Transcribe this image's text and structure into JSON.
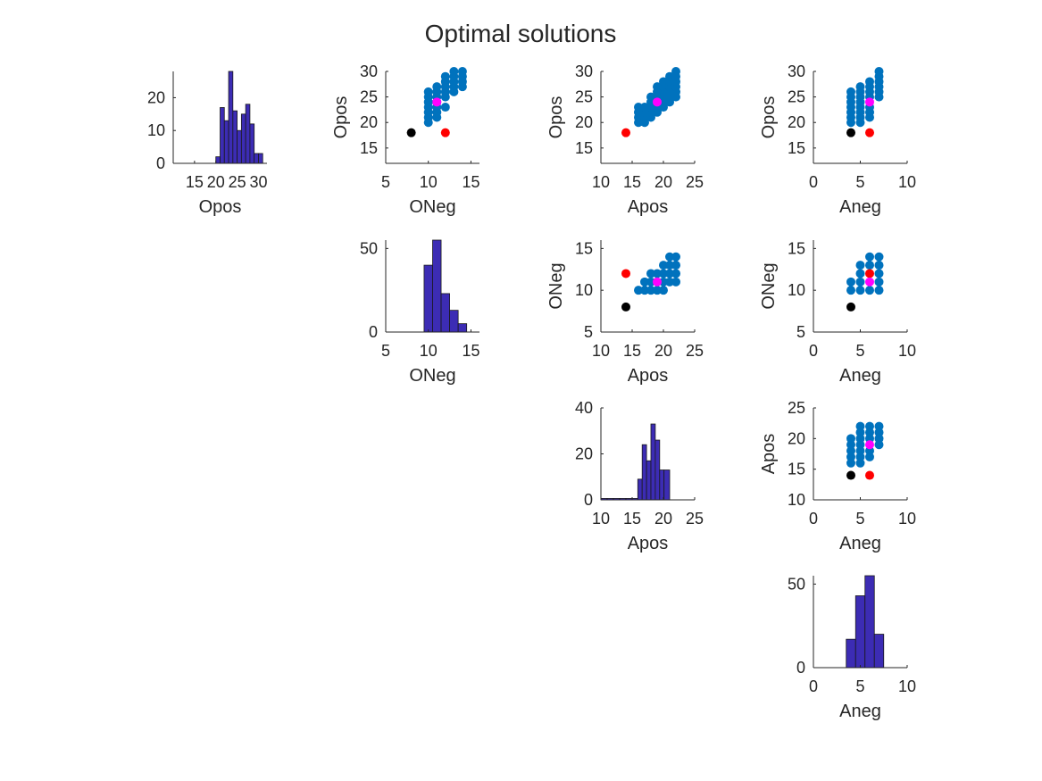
{
  "figure": {
    "title": "Optimal solutions"
  },
  "colors": {
    "hist_bar": "#3c2cb4",
    "scatter_points": "#0072bd",
    "point_magenta": "#ff00ff",
    "point_red": "#ff0000",
    "point_black": "#000000"
  },
  "chart_data": [
    {
      "id": "hist-opos",
      "type": "bar",
      "row": 0,
      "col": 0,
      "xlabel": "Opos",
      "xlim": [
        10,
        32
      ],
      "ylim": [
        0,
        28
      ],
      "xticks": [
        15,
        20,
        25,
        30
      ],
      "yticks": [
        0,
        10,
        20
      ],
      "bin_edges": [
        11,
        12,
        13,
        14,
        15,
        16,
        17,
        18,
        19,
        20,
        21,
        22,
        23,
        24,
        25,
        26,
        27,
        28,
        29,
        30,
        31
      ],
      "values": [
        0,
        0,
        0,
        0,
        0,
        0,
        0,
        0,
        0,
        2,
        17,
        13,
        28,
        16,
        10,
        15,
        18,
        12,
        3,
        3
      ]
    },
    {
      "id": "scatter-oneg-opos",
      "type": "scatter",
      "row": 0,
      "col": 1,
      "xlabel": "ONeg",
      "ylabel": "Opos",
      "xlim": [
        5,
        16
      ],
      "ylim": [
        12,
        30
      ],
      "xticks": [
        5,
        10,
        15
      ],
      "yticks": [
        15,
        20,
        25,
        30
      ],
      "points": [
        [
          10,
          20
        ],
        [
          10,
          21
        ],
        [
          10,
          22
        ],
        [
          10,
          23
        ],
        [
          10,
          24
        ],
        [
          10,
          25
        ],
        [
          10,
          26
        ],
        [
          11,
          21
        ],
        [
          11,
          22
        ],
        [
          11,
          23
        ],
        [
          11,
          24
        ],
        [
          11,
          25
        ],
        [
          11,
          26
        ],
        [
          11,
          27
        ],
        [
          12,
          23
        ],
        [
          12,
          25
        ],
        [
          12,
          26
        ],
        [
          12,
          27
        ],
        [
          12,
          28
        ],
        [
          12,
          29
        ],
        [
          13,
          26
        ],
        [
          13,
          27
        ],
        [
          13,
          28
        ],
        [
          13,
          29
        ],
        [
          13,
          30
        ],
        [
          14,
          27
        ],
        [
          14,
          28
        ],
        [
          14,
          29
        ],
        [
          14,
          30
        ]
      ],
      "special": [
        {
          "x": 11,
          "y": 24,
          "color": "point_magenta"
        },
        {
          "x": 12,
          "y": 18,
          "color": "point_red"
        },
        {
          "x": 8,
          "y": 18,
          "color": "point_black"
        }
      ]
    },
    {
      "id": "scatter-apos-opos",
      "type": "scatter",
      "row": 0,
      "col": 2,
      "xlabel": "Apos",
      "ylabel": "Opos",
      "xlim": [
        10,
        25
      ],
      "ylim": [
        12,
        30
      ],
      "xticks": [
        10,
        15,
        20,
        25
      ],
      "yticks": [
        15,
        20,
        25,
        30
      ],
      "points": [
        [
          16,
          20
        ],
        [
          16,
          21
        ],
        [
          16,
          22
        ],
        [
          16,
          23
        ],
        [
          17,
          20
        ],
        [
          17,
          21
        ],
        [
          17,
          22
        ],
        [
          17,
          23
        ],
        [
          18,
          21
        ],
        [
          18,
          22
        ],
        [
          18,
          23
        ],
        [
          18,
          24
        ],
        [
          18,
          25
        ],
        [
          19,
          22
        ],
        [
          19,
          23
        ],
        [
          19,
          24
        ],
        [
          19,
          25
        ],
        [
          19,
          26
        ],
        [
          19,
          27
        ],
        [
          20,
          23
        ],
        [
          20,
          24
        ],
        [
          20,
          25
        ],
        [
          20,
          26
        ],
        [
          20,
          27
        ],
        [
          20,
          28
        ],
        [
          21,
          24
        ],
        [
          21,
          25
        ],
        [
          21,
          26
        ],
        [
          21,
          27
        ],
        [
          21,
          28
        ],
        [
          21,
          29
        ],
        [
          22,
          25
        ],
        [
          22,
          26
        ],
        [
          22,
          27
        ],
        [
          22,
          28
        ],
        [
          22,
          29
        ],
        [
          22,
          30
        ]
      ],
      "special": [
        {
          "x": 19,
          "y": 24,
          "color": "point_magenta"
        },
        {
          "x": 14,
          "y": 18,
          "color": "point_red"
        }
      ]
    },
    {
      "id": "scatter-aneg-opos",
      "type": "scatter",
      "row": 0,
      "col": 3,
      "xlabel": "Aneg",
      "ylabel": "Opos",
      "xlim": [
        0,
        10
      ],
      "ylim": [
        12,
        30
      ],
      "xticks": [
        0,
        5,
        10
      ],
      "yticks": [
        15,
        20,
        25,
        30
      ],
      "points": [
        [
          4,
          20
        ],
        [
          4,
          21
        ],
        [
          4,
          22
        ],
        [
          4,
          23
        ],
        [
          4,
          24
        ],
        [
          4,
          25
        ],
        [
          4,
          26
        ],
        [
          5,
          20
        ],
        [
          5,
          21
        ],
        [
          5,
          22
        ],
        [
          5,
          23
        ],
        [
          5,
          24
        ],
        [
          5,
          25
        ],
        [
          5,
          26
        ],
        [
          5,
          27
        ],
        [
          6,
          21
        ],
        [
          6,
          22
        ],
        [
          6,
          23
        ],
        [
          6,
          25
        ],
        [
          6,
          26
        ],
        [
          6,
          27
        ],
        [
          6,
          28
        ],
        [
          7,
          25
        ],
        [
          7,
          26
        ],
        [
          7,
          27
        ],
        [
          7,
          28
        ],
        [
          7,
          29
        ],
        [
          7,
          30
        ]
      ],
      "special": [
        {
          "x": 6,
          "y": 24,
          "color": "point_magenta"
        },
        {
          "x": 6,
          "y": 18,
          "color": "point_red"
        },
        {
          "x": 4,
          "y": 18,
          "color": "point_black"
        }
      ]
    },
    {
      "id": "hist-oneg",
      "type": "bar",
      "row": 1,
      "col": 1,
      "xlabel": "ONeg",
      "xlim": [
        5,
        16
      ],
      "ylim": [
        0,
        55
      ],
      "xticks": [
        5,
        10,
        15
      ],
      "yticks": [
        0,
        50
      ],
      "bin_edges": [
        5.5,
        6.5,
        7.5,
        8.5,
        9.5,
        10.5,
        11.5,
        12.5,
        13.5,
        14.5
      ],
      "values": [
        0,
        0,
        0,
        0,
        40,
        55,
        23,
        13,
        5
      ]
    },
    {
      "id": "scatter-apos-oneg",
      "type": "scatter",
      "row": 1,
      "col": 2,
      "xlabel": "Apos",
      "ylabel": "ONeg",
      "xlim": [
        10,
        25
      ],
      "ylim": [
        5,
        16
      ],
      "xticks": [
        10,
        15,
        20,
        25
      ],
      "yticks": [
        5,
        10,
        15
      ],
      "points": [
        [
          16,
          10
        ],
        [
          17,
          10
        ],
        [
          17,
          11
        ],
        [
          18,
          10
        ],
        [
          18,
          11
        ],
        [
          18,
          12
        ],
        [
          19,
          10
        ],
        [
          19,
          11
        ],
        [
          19,
          12
        ],
        [
          20,
          10
        ],
        [
          20,
          11
        ],
        [
          20,
          12
        ],
        [
          20,
          13
        ],
        [
          21,
          11
        ],
        [
          21,
          12
        ],
        [
          21,
          13
        ],
        [
          21,
          14
        ],
        [
          22,
          11
        ],
        [
          22,
          12
        ],
        [
          22,
          13
        ],
        [
          22,
          14
        ]
      ],
      "special": [
        {
          "x": 19,
          "y": 11,
          "color": "point_magenta"
        },
        {
          "x": 14,
          "y": 12,
          "color": "point_red"
        },
        {
          "x": 14,
          "y": 8,
          "color": "point_black"
        }
      ]
    },
    {
      "id": "scatter-aneg-oneg",
      "type": "scatter",
      "row": 1,
      "col": 3,
      "xlabel": "Aneg",
      "ylabel": "ONeg",
      "xlim": [
        0,
        10
      ],
      "ylim": [
        5,
        16
      ],
      "xticks": [
        0,
        5,
        10
      ],
      "yticks": [
        5,
        10,
        15
      ],
      "points": [
        [
          4,
          10
        ],
        [
          4,
          11
        ],
        [
          5,
          10
        ],
        [
          5,
          11
        ],
        [
          5,
          12
        ],
        [
          5,
          13
        ],
        [
          6,
          10
        ],
        [
          6,
          13
        ],
        [
          6,
          14
        ],
        [
          7,
          10
        ],
        [
          7,
          11
        ],
        [
          7,
          12
        ],
        [
          7,
          13
        ],
        [
          7,
          14
        ]
      ],
      "special": [
        {
          "x": 6,
          "y": 12,
          "color": "point_red"
        },
        {
          "x": 6,
          "y": 11,
          "color": "point_magenta"
        },
        {
          "x": 4,
          "y": 8,
          "color": "point_black"
        }
      ]
    },
    {
      "id": "hist-apos",
      "type": "bar",
      "row": 2,
      "col": 2,
      "xlabel": "Apos",
      "xlim": [
        10,
        25
      ],
      "ylim": [
        0,
        40
      ],
      "xticks": [
        10,
        15,
        20,
        25
      ],
      "yticks": [
        0,
        20,
        40
      ],
      "bin_edges": [
        10,
        11,
        12,
        13,
        14,
        15,
        15.9,
        16.6,
        17.3,
        18,
        18.7,
        19.4,
        20.1,
        21,
        22
      ],
      "values": [
        0.6,
        0.6,
        0.6,
        0.6,
        0.6,
        0.6,
        9,
        24,
        17,
        33,
        26,
        13,
        13,
        0
      ]
    },
    {
      "id": "scatter-aneg-apos",
      "type": "scatter",
      "row": 2,
      "col": 3,
      "xlabel": "Aneg",
      "ylabel": "Apos",
      "xlim": [
        0,
        10
      ],
      "ylim": [
        10,
        25
      ],
      "xticks": [
        0,
        5,
        10
      ],
      "yticks": [
        10,
        15,
        20,
        25
      ],
      "points": [
        [
          4,
          16
        ],
        [
          4,
          17
        ],
        [
          4,
          18
        ],
        [
          4,
          19
        ],
        [
          4,
          20
        ],
        [
          5,
          16
        ],
        [
          5,
          17
        ],
        [
          5,
          18
        ],
        [
          5,
          19
        ],
        [
          5,
          20
        ],
        [
          5,
          21
        ],
        [
          5,
          22
        ],
        [
          6,
          17
        ],
        [
          6,
          18
        ],
        [
          6,
          20
        ],
        [
          6,
          21
        ],
        [
          6,
          22
        ],
        [
          7,
          19
        ],
        [
          7,
          20
        ],
        [
          7,
          21
        ],
        [
          7,
          22
        ]
      ],
      "special": [
        {
          "x": 6,
          "y": 19,
          "color": "point_magenta"
        },
        {
          "x": 6,
          "y": 14,
          "color": "point_red"
        },
        {
          "x": 4,
          "y": 14,
          "color": "point_black"
        }
      ]
    },
    {
      "id": "hist-aneg",
      "type": "bar",
      "row": 3,
      "col": 3,
      "xlabel": "Aneg",
      "xlim": [
        0,
        10
      ],
      "ylim": [
        0,
        55
      ],
      "xticks": [
        0,
        5,
        10
      ],
      "yticks": [
        0,
        50
      ],
      "bin_edges": [
        3.5,
        4.5,
        5.5,
        6.5,
        7.5
      ],
      "values": [
        17,
        43,
        55,
        20
      ]
    }
  ]
}
